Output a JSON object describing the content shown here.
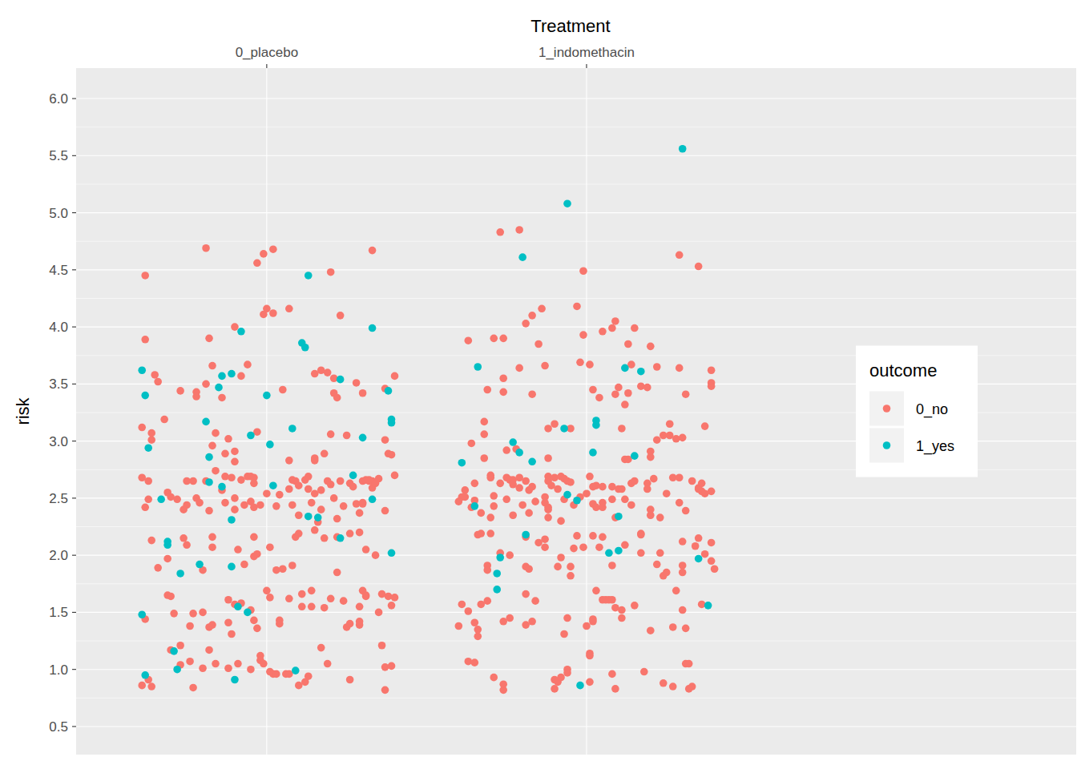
{
  "chart_data": {
    "type": "scatter",
    "xlabel": "Treatment",
    "ylabel": "risk",
    "legend_title": "outcome",
    "legend": "right",
    "grid": true,
    "xlim": [
      0.404,
      3.531
    ],
    "ylim": [
      0.254,
      6.267
    ],
    "xticks": [
      {
        "value": 1,
        "label": "0_placebo"
      },
      {
        "value": 2,
        "label": "1_indomethacin"
      }
    ],
    "yticks": [
      0.5,
      {
        "value": 1,
        "label": "1.0"
      },
      1.5,
      {
        "value": 2,
        "label": "2.0"
      },
      2.5,
      {
        "value": 3,
        "label": "3.0"
      },
      3.5,
      {
        "value": 4,
        "label": "4.0"
      },
      4.5,
      {
        "value": 5,
        "label": "5.0"
      },
      5.5,
      {
        "value": 6,
        "label": "6.0"
      }
    ],
    "series": [
      {
        "name": "0_no",
        "color": "#F8766D",
        "marker": "circle",
        "x": [
          0.61,
          0.62,
          0.62,
          0.61,
          0.63,
          0.64,
          0.64,
          0.65,
          0.66,
          0.62,
          0.63,
          0.62,
          0.61,
          0.63,
          0.64,
          0.64,
          0.66,
          0.68,
          0.69,
          0.69,
          0.7,
          0.69,
          0.7,
          0.71,
          0.7,
          0.73,
          0.73,
          0.74,
          0.73,
          0.72,
          0.74,
          0.75,
          0.75,
          0.75,
          0.76,
          0.77,
          0.76,
          0.78,
          0.78,
          0.77,
          0.77,
          0.78,
          0.79,
          0.8,
          0.8,
          0.8,
          0.81,
          0.81,
          0.81,
          0.82,
          0.82,
          0.82,
          0.82,
          0.83,
          0.83,
          0.83,
          0.83,
          0.83,
          0.84,
          0.84,
          0.84,
          0.86,
          0.86,
          0.87,
          0.87,
          0.87,
          0.88,
          0.88,
          0.88,
          0.88,
          0.89,
          0.89,
          0.9,
          0.9,
          0.9,
          0.9,
          0.9,
          0.9,
          0.91,
          0.91,
          0.92,
          0.92,
          0.92,
          0.93,
          0.93,
          0.94,
          0.94,
          0.95,
          0.95,
          0.95,
          0.95,
          0.96,
          0.96,
          0.96,
          0.96,
          0.96,
          0.96,
          0.97,
          0.97,
          0.97,
          0.97,
          0.98,
          0.98,
          0.99,
          0.98,
          0.99,
          0.99,
          1.0,
          1.0,
          1.0,
          1.01,
          1.01,
          1.01,
          1.02,
          1.02,
          1.02,
          1.03,
          1.03,
          1.03,
          1.04,
          1.04,
          1.04,
          1.05,
          1.05,
          1.06,
          1.07,
          1.07,
          1.07,
          1.07,
          1.07,
          1.08,
          1.08,
          1.08,
          1.09,
          1.09,
          1.1,
          1.1,
          1.1,
          1.1,
          1.11,
          1.11,
          1.12,
          1.12,
          1.13,
          1.13,
          1.13,
          1.14,
          1.14,
          1.14,
          1.15,
          1.15,
          1.15,
          1.15,
          1.15,
          1.16,
          1.17,
          1.17,
          1.17,
          1.17,
          1.18,
          1.18,
          1.18,
          1.19,
          1.19,
          1.19,
          1.2,
          1.2,
          1.2,
          1.2,
          1.21,
          1.21,
          1.21,
          1.22,
          1.22,
          1.22,
          1.22,
          1.23,
          1.23,
          1.24,
          1.24,
          1.25,
          1.25,
          1.26,
          1.26,
          1.26,
          1.26,
          1.27,
          1.28,
          1.28,
          1.29,
          1.29,
          1.29,
          1.29,
          1.29,
          1.3,
          1.3,
          1.3,
          1.3,
          1.3,
          1.31,
          1.31,
          1.31,
          1.31,
          1.32,
          1.32,
          1.33,
          1.33,
          1.33,
          1.34,
          1.34,
          1.35,
          1.35,
          1.36,
          1.36,
          1.37,
          1.37,
          1.37,
          1.37,
          1.37,
          1.38,
          1.38,
          1.39,
          1.39,
          1.39,
          1.4,
          1.4,
          1.4,
          1.63,
          1.61,
          1.6,
          1.6,
          1.61,
          1.62,
          1.62,
          1.63,
          1.63,
          1.64,
          1.64,
          1.65,
          1.65,
          1.65,
          1.65,
          1.66,
          1.66,
          1.66,
          1.67,
          1.67,
          1.67,
          1.68,
          1.68,
          1.68,
          1.69,
          1.69,
          1.69,
          1.69,
          1.7,
          1.7,
          1.7,
          1.7,
          1.71,
          1.71,
          1.71,
          1.71,
          1.73,
          1.73,
          1.73,
          1.74,
          1.74,
          1.74,
          1.74,
          1.74,
          1.74,
          1.75,
          1.75,
          1.75,
          1.76,
          1.76,
          1.76,
          1.77,
          1.77,
          1.77,
          1.78,
          1.79,
          1.79,
          1.79,
          1.79,
          1.8,
          1.81,
          1.81,
          1.81,
          1.81,
          1.81,
          1.81,
          1.82,
          1.82,
          1.82,
          1.83,
          1.83,
          1.83,
          1.83,
          1.84,
          1.84,
          1.85,
          1.85,
          1.86,
          1.87,
          1.87,
          1.87,
          1.87,
          1.87,
          1.88,
          1.88,
          1.88,
          1.88,
          1.88,
          1.88,
          1.88,
          1.89,
          1.9,
          1.9,
          1.9,
          1.9,
          1.91,
          1.91,
          1.91,
          1.92,
          1.92,
          1.92,
          1.92,
          1.93,
          1.93,
          1.93,
          1.94,
          1.94,
          1.94,
          1.94,
          1.95,
          1.95,
          1.95,
          1.95,
          1.96,
          1.96,
          1.97,
          1.97,
          1.98,
          1.98,
          1.99,
          1.99,
          1.99,
          2.0,
          2.0,
          2.01,
          2.01,
          2.01,
          2.01,
          2.01,
          2.02,
          2.02,
          2.02,
          2.02,
          2.02,
          2.02,
          2.03,
          2.03,
          2.03,
          2.04,
          2.04,
          2.05,
          2.05,
          2.05,
          2.05,
          2.05,
          2.05,
          2.06,
          2.07,
          2.08,
          2.08,
          2.08,
          2.08,
          2.08,
          2.08,
          2.09,
          2.09,
          2.09,
          2.09,
          2.09,
          2.1,
          2.1,
          2.11,
          2.11,
          2.11,
          2.11,
          2.12,
          2.12,
          2.12,
          2.12,
          2.13,
          2.13,
          2.14,
          2.13,
          2.15,
          2.14,
          2.14,
          2.15,
          2.15,
          2.17,
          2.17,
          2.17,
          2.17,
          2.18,
          2.19,
          2.19,
          2.19,
          2.2,
          2.2,
          2.2,
          2.2,
          2.2,
          2.2,
          2.21,
          2.22,
          2.22,
          2.22,
          2.23,
          2.23,
          2.24,
          2.24,
          2.24,
          2.25,
          2.25,
          2.26,
          2.26,
          2.27,
          2.27,
          2.27,
          2.28,
          2.28,
          2.29,
          2.29,
          2.29,
          2.29,
          2.3,
          2.3,
          2.3,
          2.3,
          2.3,
          2.31,
          2.31,
          2.31,
          2.31,
          2.32,
          2.32,
          2.33,
          2.33,
          2.34,
          2.35,
          2.35,
          2.35,
          2.35,
          2.36,
          2.36,
          2.36,
          2.37,
          2.37,
          2.37,
          2.39,
          2.39,
          2.39,
          2.39,
          2.39,
          2.39,
          2.4
        ],
        "values": [
          3.12,
          4.45,
          3.89,
          2.68,
          2.65,
          3.07,
          3.01,
          3.58,
          3.52,
          2.42,
          2.49,
          1.44,
          0.86,
          0.91,
          0.85,
          2.13,
          1.89,
          3.19,
          1.97,
          2.55,
          2.51,
          1.65,
          1.64,
          1.49,
          1.17,
          1.21,
          1.04,
          2.15,
          3.44,
          2.49,
          2.4,
          2.44,
          2.65,
          2.09,
          1.07,
          0.84,
          1.38,
          3.43,
          3.39,
          2.65,
          1.49,
          2.5,
          2.46,
          1.87,
          1.5,
          1.01,
          2.65,
          4.69,
          3.5,
          3.9,
          2.39,
          1.17,
          1.37,
          3.66,
          2.96,
          2.16,
          2.07,
          1.39,
          3.07,
          2.74,
          1.05,
          2.57,
          3.38,
          2.69,
          2.46,
          2.89,
          1.01,
          3.02,
          1.61,
          1.41,
          2.68,
          1.31,
          4.0,
          2.91,
          2.82,
          2.5,
          2.4,
          1.57,
          2.05,
          1.05,
          3.57,
          2.66,
          1.58,
          2.44,
          1.92,
          3.67,
          2.69,
          2.69,
          1.52,
          1.0,
          2.47,
          2.42,
          2.68,
          1.99,
          2.63,
          1.43,
          2.16,
          2.01,
          3.08,
          4.56,
          1.36,
          1.12,
          1.08,
          4.11,
          2.44,
          1.05,
          4.64,
          2.54,
          4.16,
          1.69,
          1.63,
          2.07,
          0.98,
          0.96,
          4.68,
          4.12,
          2.43,
          0.96,
          1.87,
          1.43,
          2.53,
          1.4,
          3.45,
          1.88,
          0.96,
          0.96,
          4.16,
          2.58,
          1.62,
          2.83,
          2.66,
          1.91,
          2.44,
          2.16,
          2.65,
          2.61,
          2.35,
          2.19,
          0.86,
          1.66,
          1.55,
          2.66,
          0.89,
          0.94,
          2.58,
          2.69,
          1.69,
          2.46,
          1.55,
          3.59,
          2.83,
          2.54,
          2.85,
          2.22,
          2.29,
          3.62,
          2.57,
          2.4,
          1.19,
          2.89,
          1.54,
          2.15,
          3.6,
          1.05,
          2.65,
          4.48,
          2.62,
          3.06,
          1.62,
          3.55,
          3.42,
          2.5,
          2.16,
          1.85,
          2.32,
          3.38,
          4.1,
          2.65,
          1.6,
          2.43,
          3.05,
          1.37,
          2.63,
          2.19,
          1.4,
          0.91,
          2.6,
          2.45,
          3.51,
          1.55,
          1.39,
          2.37,
          2.2,
          1.42,
          3.42,
          2.46,
          2.65,
          2.45,
          1.69,
          2.66,
          2.05,
          1.65,
          1.64,
          2.65,
          2.66,
          4.67,
          2.59,
          2.65,
          2.63,
          2.0,
          2.67,
          1.5,
          1.21,
          1.66,
          3.46,
          1.02,
          0.82,
          2.39,
          3.01,
          2.89,
          1.64,
          1.56,
          1.03,
          2.88,
          3.57,
          2.7,
          1.63,
          3.88,
          2.51,
          2.47,
          1.38,
          1.57,
          2.51,
          2.57,
          1.51,
          1.07,
          2.98,
          2.42,
          2.63,
          2.48,
          1.06,
          1.41,
          1.29,
          1.35,
          2.18,
          2.37,
          1.57,
          2.19,
          2.85,
          3.06,
          3.17,
          3.45,
          1.91,
          1.87,
          1.6,
          2.7,
          2.19,
          2.33,
          2.68,
          2.43,
          2.52,
          0.93,
          3.9,
          2.63,
          2.02,
          4.83,
          0.82,
          1.42,
          3.9,
          0.87,
          3.55,
          3.43,
          2.49,
          2.92,
          2.68,
          1.45,
          2.66,
          2.0,
          2.35,
          2.66,
          2.62,
          2.93,
          3.64,
          2.59,
          4.85,
          2.68,
          2.44,
          2.65,
          2.16,
          1.66,
          4.03,
          1.9,
          1.39,
          1.88,
          2.57,
          2.37,
          2.6,
          3.41,
          4.1,
          1.42,
          2.47,
          1.6,
          2.11,
          3.85,
          4.16,
          2.07,
          3.66,
          2.46,
          2.51,
          2.14,
          2.33,
          2.69,
          2.65,
          2.85,
          3.11,
          2.42,
          2.4,
          2.61,
          0.83,
          0.91,
          3.15,
          2.68,
          1.9,
          2.58,
          0.89,
          0.93,
          2.3,
          2.69,
          1.98,
          2.49,
          2.67,
          1.31,
          0.97,
          1.0,
          2.65,
          1.45,
          2.64,
          1.82,
          1.9,
          3.11,
          2.44,
          2.06,
          2.17,
          4.18,
          2.51,
          3.69,
          2.07,
          4.49,
          3.93,
          2.54,
          1.38,
          3.67,
          2.69,
          1.14,
          1.12,
          0.89,
          1.42,
          2.17,
          2.6,
          2.45,
          1.44,
          3.45,
          2.61,
          1.69,
          2.42,
          3.38,
          2.07,
          2.6,
          3.96,
          1.61,
          2.42,
          2.16,
          2.46,
          1.61,
          1.61,
          1.91,
          2.49,
          3.99,
          0.96,
          2.6,
          1.61,
          0.83,
          3.41,
          2.33,
          4.05,
          1.54,
          3.47,
          2.58,
          3.11,
          2.58,
          1.52,
          1.45,
          2.84,
          2.09,
          3.32,
          2.49,
          3.42,
          2.84,
          3.67,
          3.85,
          3.99,
          2.44,
          2.63,
          1.56,
          2.65,
          2.19,
          2.02,
          2.18,
          3.48,
          0.98,
          2.63,
          2.58,
          3.47,
          3.83,
          1.34,
          2.91,
          2.86,
          2.4,
          2.35,
          2.67,
          3.01,
          1.92,
          3.65,
          2.33,
          2.02,
          0.88,
          1.82,
          3.05,
          2.54,
          1.85,
          3.05,
          3.15,
          0.85,
          1.37,
          2.68,
          3.02,
          1.69,
          3.64,
          4.63,
          2.46,
          2.68,
          3.03,
          2.12,
          1.52,
          1.91,
          1.85,
          1.36,
          1.05,
          2.39,
          3.41,
          1.05,
          0.83,
          2.65,
          0.85,
          2.08,
          2.58,
          4.53,
          2.15,
          2.59,
          1.57,
          2.56,
          2.63,
          2.01,
          3.13,
          2.54,
          3.51,
          2.56,
          1.95,
          3.48,
          2.11,
          3.62,
          1.88
        ]
      },
      {
        "name": "1_yes",
        "color": "#00BFC4",
        "marker": "circle",
        "x": [
          0.61,
          0.62,
          0.63,
          0.61,
          0.62,
          0.67,
          0.69,
          0.69,
          0.71,
          0.72,
          0.73,
          0.79,
          0.81,
          0.82,
          0.82,
          0.85,
          0.86,
          0.86,
          0.89,
          0.89,
          0.89,
          0.9,
          0.91,
          0.92,
          0.94,
          0.95,
          1.0,
          1.01,
          1.02,
          1.09,
          1.11,
          1.12,
          1.08,
          1.13,
          1.13,
          1.16,
          1.23,
          1.23,
          1.27,
          1.3,
          1.33,
          1.33,
          1.38,
          1.39,
          1.39,
          1.39,
          1.61,
          1.66,
          1.65,
          1.73,
          1.72,
          1.72,
          1.77,
          1.79,
          1.8,
          1.81,
          1.83,
          1.93,
          1.94,
          1.94,
          1.97,
          1.98,
          2.02,
          2.03,
          2.03,
          2.07,
          2.1,
          2.1,
          2.12,
          2.15,
          2.17,
          2.3,
          2.35,
          2.38
        ],
        "values": [
          3.62,
          3.4,
          2.94,
          1.48,
          0.95,
          2.49,
          2.12,
          2.09,
          1.16,
          1.0,
          1.84,
          1.92,
          3.17,
          2.86,
          2.64,
          3.47,
          2.6,
          3.57,
          3.59,
          2.31,
          1.9,
          0.91,
          1.55,
          3.96,
          1.5,
          3.05,
          3.4,
          2.97,
          2.61,
          0.99,
          3.86,
          3.82,
          3.11,
          4.45,
          2.34,
          2.33,
          3.54,
          2.15,
          2.7,
          3.03,
          3.99,
          2.49,
          3.44,
          3.19,
          3.16,
          2.02,
          2.81,
          3.65,
          2.43,
          1.98,
          1.84,
          1.7,
          2.99,
          2.9,
          4.61,
          2.18,
          2.82,
          3.11,
          5.08,
          2.53,
          2.48,
          0.86,
          2.9,
          3.14,
          3.18,
          2.02,
          2.04,
          2.34,
          3.64,
          2.87,
          3.61,
          5.56,
          1.97,
          1.56
        ]
      }
    ]
  }
}
